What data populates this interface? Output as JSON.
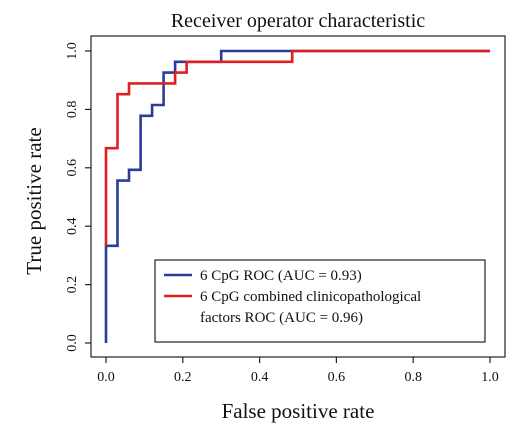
{
  "chart_data": {
    "type": "line",
    "title": "Receiver operator characteristic",
    "xlabel": "False positive rate",
    "ylabel": "True positive rate",
    "xlim": [
      0,
      1
    ],
    "ylim": [
      0,
      1
    ],
    "x_ticks": [
      "0.0",
      "0.2",
      "0.4",
      "0.6",
      "0.8",
      "1.0"
    ],
    "y_ticks": [
      "0.0",
      "0.2",
      "0.4",
      "0.6",
      "0.8",
      "1.0"
    ],
    "grid": false,
    "legend_position": "bottom-right",
    "series": [
      {
        "name": "6 CpG ROC (AUC = 0.93)",
        "legend_lines": [
          "6 CpG ROC (AUC = 0.93)"
        ],
        "color": "#2a3d99",
        "step": true,
        "points": [
          [
            0,
            0
          ],
          [
            0,
            0.333
          ],
          [
            0.03,
            0.333
          ],
          [
            0.03,
            0.556
          ],
          [
            0.06,
            0.556
          ],
          [
            0.06,
            0.593
          ],
          [
            0.09,
            0.593
          ],
          [
            0.09,
            0.778
          ],
          [
            0.12,
            0.778
          ],
          [
            0.12,
            0.815
          ],
          [
            0.15,
            0.815
          ],
          [
            0.15,
            0.926
          ],
          [
            0.18,
            0.926
          ],
          [
            0.18,
            0.963
          ],
          [
            0.3,
            0.963
          ],
          [
            0.3,
            1.0
          ],
          [
            1.0,
            1.0
          ]
        ]
      },
      {
        "name": "6 CpG combined clinicopathological factors ROC (AUC = 0.96)",
        "legend_lines": [
          "6 CpG combined clinicopathological",
          "factors ROC (AUC = 0.96)"
        ],
        "color": "#e02020",
        "step": true,
        "points": [
          [
            0,
            0.333
          ],
          [
            0,
            0.667
          ],
          [
            0.03,
            0.667
          ],
          [
            0.03,
            0.852
          ],
          [
            0.06,
            0.852
          ],
          [
            0.06,
            0.889
          ],
          [
            0.18,
            0.889
          ],
          [
            0.18,
            0.926
          ],
          [
            0.21,
            0.926
          ],
          [
            0.21,
            0.963
          ],
          [
            0.485,
            0.963
          ],
          [
            0.485,
            1.0
          ],
          [
            1.0,
            1.0
          ]
        ]
      }
    ]
  }
}
